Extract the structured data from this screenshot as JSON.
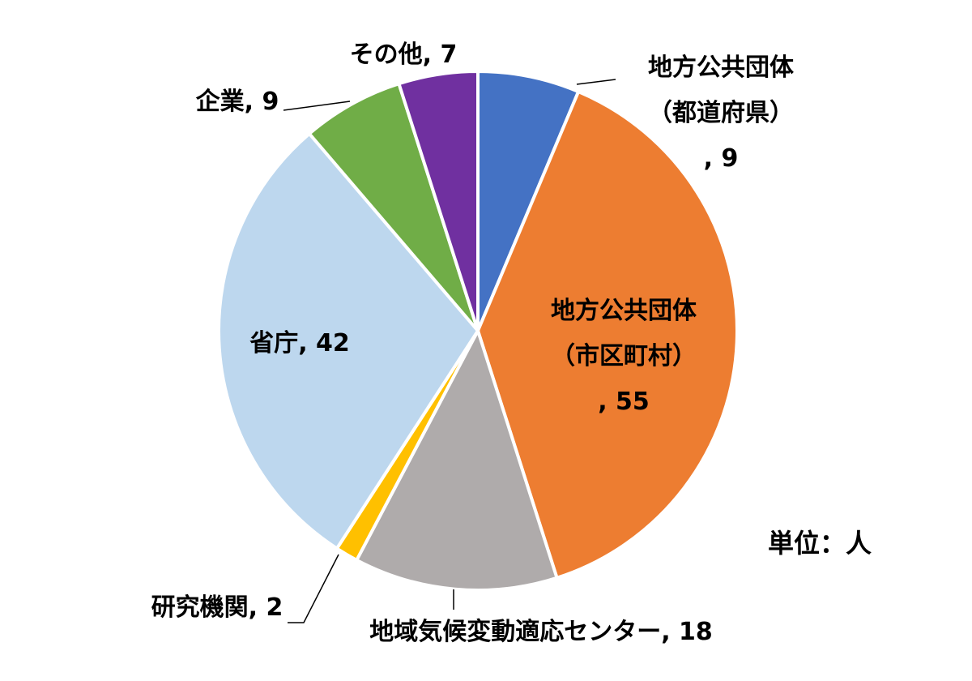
{
  "chart_data": {
    "type": "pie",
    "title": "",
    "unit_label": "単位：人",
    "start": "top",
    "direction": "clockwise",
    "categories": [
      "地方公共団体（都道府県）",
      "地方公共団体（市区町村）",
      "地域気候変動適応センター",
      "研究機関",
      "省庁",
      "企業",
      "その他"
    ],
    "values": [
      9,
      55,
      18,
      2,
      42,
      9,
      7
    ],
    "colors": [
      "#4472C4",
      "#ED7D31",
      "#AFABAB",
      "#FFC000",
      "#BDD7EE",
      "#70AD47",
      "#7030A0"
    ],
    "legend": "none",
    "data_labels": "category, value"
  }
}
